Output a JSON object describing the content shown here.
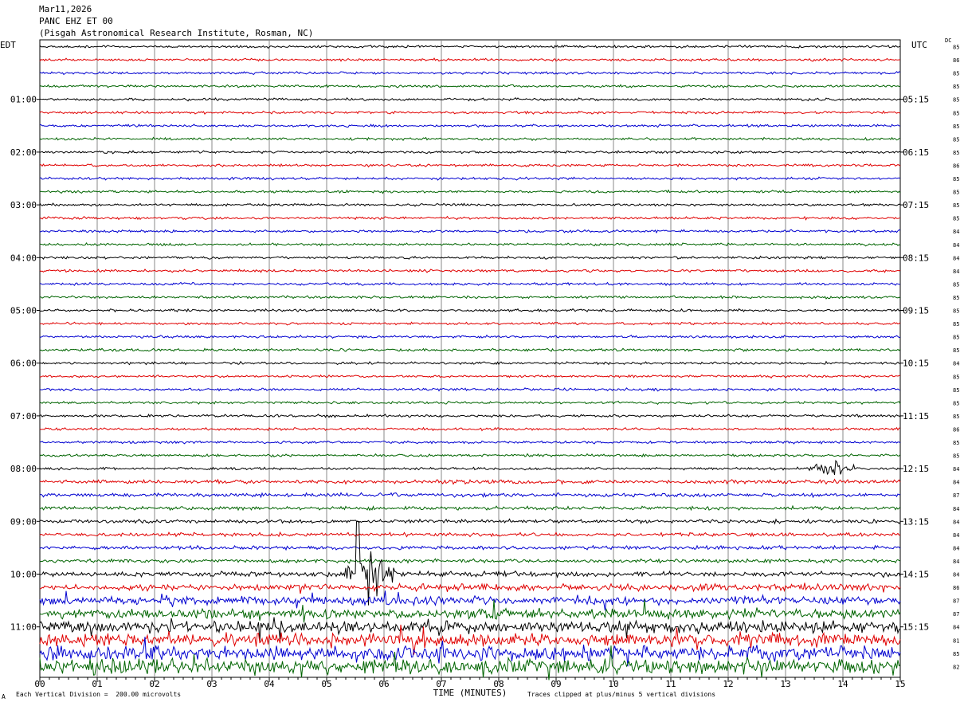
{
  "header": {
    "date": "Mar11,2026",
    "station": "PANC EHZ ET 00",
    "location": "(Pisgah Astronomical Research Institute, Rosman, NC)"
  },
  "corners": {
    "left_tz": "EDT",
    "right_tz": "UTC",
    "dc_label": "DC"
  },
  "footer": {
    "mark": "A",
    "scale_note": "Each Vertical Division =  200.00 microvolts",
    "clip_note": "Traces clipped at plus/minus 5 vertical divisions"
  },
  "chart_data": {
    "type": "line",
    "title": "PANC EHZ ET 00",
    "xlabel": "TIME (MINUTES)",
    "xlim": [
      0,
      15
    ],
    "x_ticks": [
      "00",
      "01",
      "02",
      "03",
      "04",
      "05",
      "06",
      "07",
      "08",
      "09",
      "10",
      "11",
      "12",
      "13",
      "14",
      "15"
    ],
    "trace_colors": [
      "#000000",
      "#e00000",
      "#0000d0",
      "#006400"
    ],
    "trace_count": 48,
    "left_hour_labels": [
      "01:00",
      "02:00",
      "03:00",
      "04:00",
      "05:00",
      "06:00",
      "07:00",
      "08:00",
      "09:00",
      "10:00",
      "11:00"
    ],
    "right_hour_labels": [
      "05:15",
      "06:15",
      "07:15",
      "08:15",
      "09:15",
      "10:15",
      "11:15",
      "12:15",
      "13:15",
      "14:15",
      "15:15"
    ],
    "dc_offsets": [
      85,
      86,
      85,
      85,
      85,
      85,
      85,
      85,
      85,
      86,
      85,
      85,
      85,
      85,
      84,
      84,
      84,
      84,
      85,
      85,
      85,
      85,
      85,
      85,
      84,
      85,
      85,
      85,
      85,
      86,
      85,
      85,
      84,
      84,
      87,
      84,
      84,
      84,
      84,
      84,
      84,
      86,
      87,
      87,
      84,
      81,
      85,
      82
    ],
    "events": [
      {
        "trace": 40,
        "start_min": 5.3,
        "end_min": 6.2,
        "amplitude": "clipped"
      },
      {
        "trace": 32,
        "start_min": 13.4,
        "end_min": 14.2,
        "amplitude": "moderate"
      }
    ]
  }
}
